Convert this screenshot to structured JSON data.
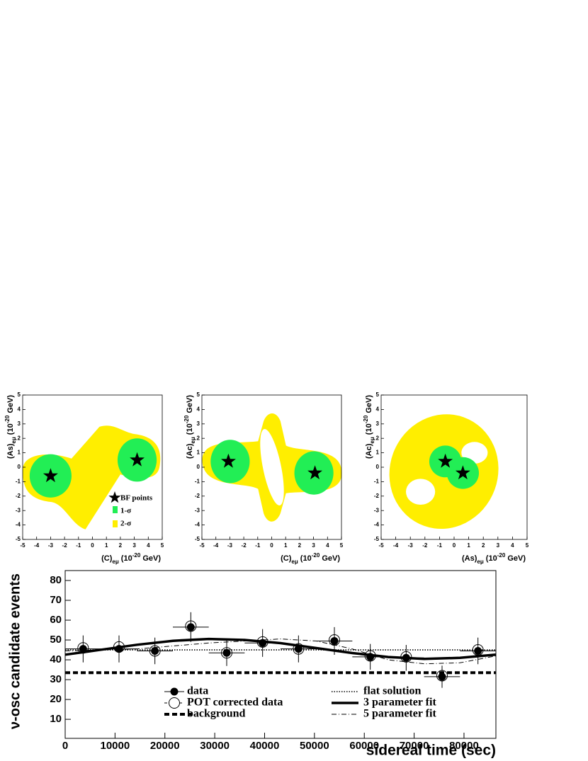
{
  "chart_data": [
    {
      "type": "contour",
      "xlim": [
        -5,
        5
      ],
      "ylim": [
        -5,
        5
      ],
      "xticks": [
        -5,
        -4,
        -3,
        -2,
        -1,
        0,
        1,
        2,
        3,
        4,
        5
      ],
      "yticks": [
        -5,
        -4,
        -3,
        -2,
        -1,
        0,
        1,
        2,
        3,
        4,
        5
      ],
      "x_label": [
        "(C)",
        "eμ",
        " (10",
        "-20",
        " GeV)"
      ],
      "y_label": [
        "(As)",
        "eμ",
        " (10",
        "-20",
        " GeV)"
      ],
      "bf_points": {
        "x": [
          -3.0,
          3.2
        ],
        "y": [
          -0.6,
          0.5
        ]
      },
      "sigma1_color": "#22ee55",
      "sigma2_color": "#ffee00",
      "legend": [
        "BF points",
        "1-σ",
        "2-σ"
      ]
    },
    {
      "type": "contour",
      "xlim": [
        -5,
        5
      ],
      "ylim": [
        -5,
        5
      ],
      "xticks": [
        -5,
        -4,
        -3,
        -2,
        -1,
        0,
        1,
        2,
        3,
        4,
        5
      ],
      "yticks": [
        -5,
        -4,
        -3,
        -2,
        -1,
        0,
        1,
        2,
        3,
        4,
        5
      ],
      "x_label": [
        "(C)",
        "eμ",
        " (10",
        "-20",
        " GeV)"
      ],
      "y_label": [
        "(Ac)",
        "eμ",
        " (10",
        "-20",
        " GeV)"
      ],
      "bf_points": {
        "x": [
          -3.1,
          3.1
        ],
        "y": [
          0.4,
          -0.4
        ]
      },
      "sigma1_color": "#22ee55",
      "sigma2_color": "#ffee00"
    },
    {
      "type": "contour",
      "xlim": [
        -5,
        5
      ],
      "ylim": [
        -5,
        5
      ],
      "xticks": [
        -5,
        -4,
        -3,
        -2,
        -1,
        0,
        1,
        2,
        3,
        4,
        5
      ],
      "yticks": [
        -5,
        -4,
        -3,
        -2,
        -1,
        0,
        1,
        2,
        3,
        4,
        5
      ],
      "x_label": [
        "(As)",
        "eμ",
        " (10",
        "-20",
        " GeV)"
      ],
      "y_label": [
        "(Ac)",
        "eμ",
        " (10",
        "-20",
        " GeV)"
      ],
      "bf_points": {
        "x": [
          -0.6,
          0.6
        ],
        "y": [
          0.4,
          -0.4
        ]
      },
      "sigma1_color": "#22ee55",
      "sigma2_color": "#ffee00"
    },
    {
      "type": "line",
      "x_label": "sidereal time (sec)",
      "y_label": "ν-osc candidate events",
      "xlim": [
        0,
        86400
      ],
      "ylim": [
        0.4,
        85
      ],
      "xticks": [
        0,
        10000,
        20000,
        30000,
        40000,
        50000,
        60000,
        70000,
        80000
      ],
      "yticks": [
        10,
        20,
        30,
        40,
        50,
        60,
        70,
        80
      ],
      "series": [
        {
          "name": "data",
          "marker": "filled",
          "color": "#000000",
          "x": [
            3600,
            10800,
            18000,
            25200,
            32400,
            39600,
            46800,
            54000,
            61200,
            68400,
            75600,
            82800
          ],
          "values": [
            45.5,
            45.5,
            44.5,
            56.5,
            43.5,
            48.5,
            45.5,
            49.5,
            41.5,
            41,
            31.5,
            44.5
          ],
          "errors": [
            6.8,
            6.8,
            6.7,
            7.5,
            6.6,
            7,
            6.8,
            7,
            6.5,
            6.5,
            5.6,
            6.7
          ],
          "xerr": [
            3600,
            3600,
            3600,
            3600,
            3600,
            3600,
            3600,
            3600,
            3600,
            3600,
            3600,
            3600
          ]
        },
        {
          "name": "POT corrected data",
          "marker": "open",
          "color": "#000000",
          "x": [
            3600,
            10800,
            18000,
            25200,
            32400,
            39600,
            46800,
            54000,
            61200,
            68400,
            75600,
            82800
          ],
          "values": [
            46,
            46.5,
            44.5,
            57,
            43.5,
            49,
            45.5,
            50,
            42,
            41.5,
            32,
            45
          ]
        },
        {
          "name": "background",
          "style": "dashed",
          "color": "#000000",
          "x": [
            0,
            86400
          ],
          "values": [
            33.5,
            33.5
          ]
        },
        {
          "name": "flat solution",
          "style": "dotted",
          "color": "#000000",
          "x": [
            0,
            86400
          ],
          "values": [
            45,
            45
          ]
        },
        {
          "name": "3 parameter fit",
          "style": "solid",
          "color": "#000000",
          "x": [
            0,
            7200,
            14400,
            21600,
            28800,
            36000,
            43200,
            50400,
            57600,
            64800,
            72000,
            79200,
            86400
          ],
          "values": [
            42.6,
            45.1,
            47.6,
            49.6,
            50.5,
            50.0,
            48.4,
            45.9,
            43.4,
            41.4,
            40.5,
            41.0,
            42.6
          ]
        },
        {
          "name": "5 parameter fit",
          "style": "dashdot",
          "color": "#000000",
          "x": [
            0,
            7200,
            14400,
            21600,
            28800,
            36000,
            43200,
            50400,
            57600,
            64800,
            72000,
            79200,
            86400
          ],
          "values": [
            44.5,
            45,
            45.5,
            47,
            48.5,
            49.5,
            50.5,
            49.5,
            45.5,
            40,
            38,
            38.5,
            42
          ]
        }
      ]
    }
  ]
}
